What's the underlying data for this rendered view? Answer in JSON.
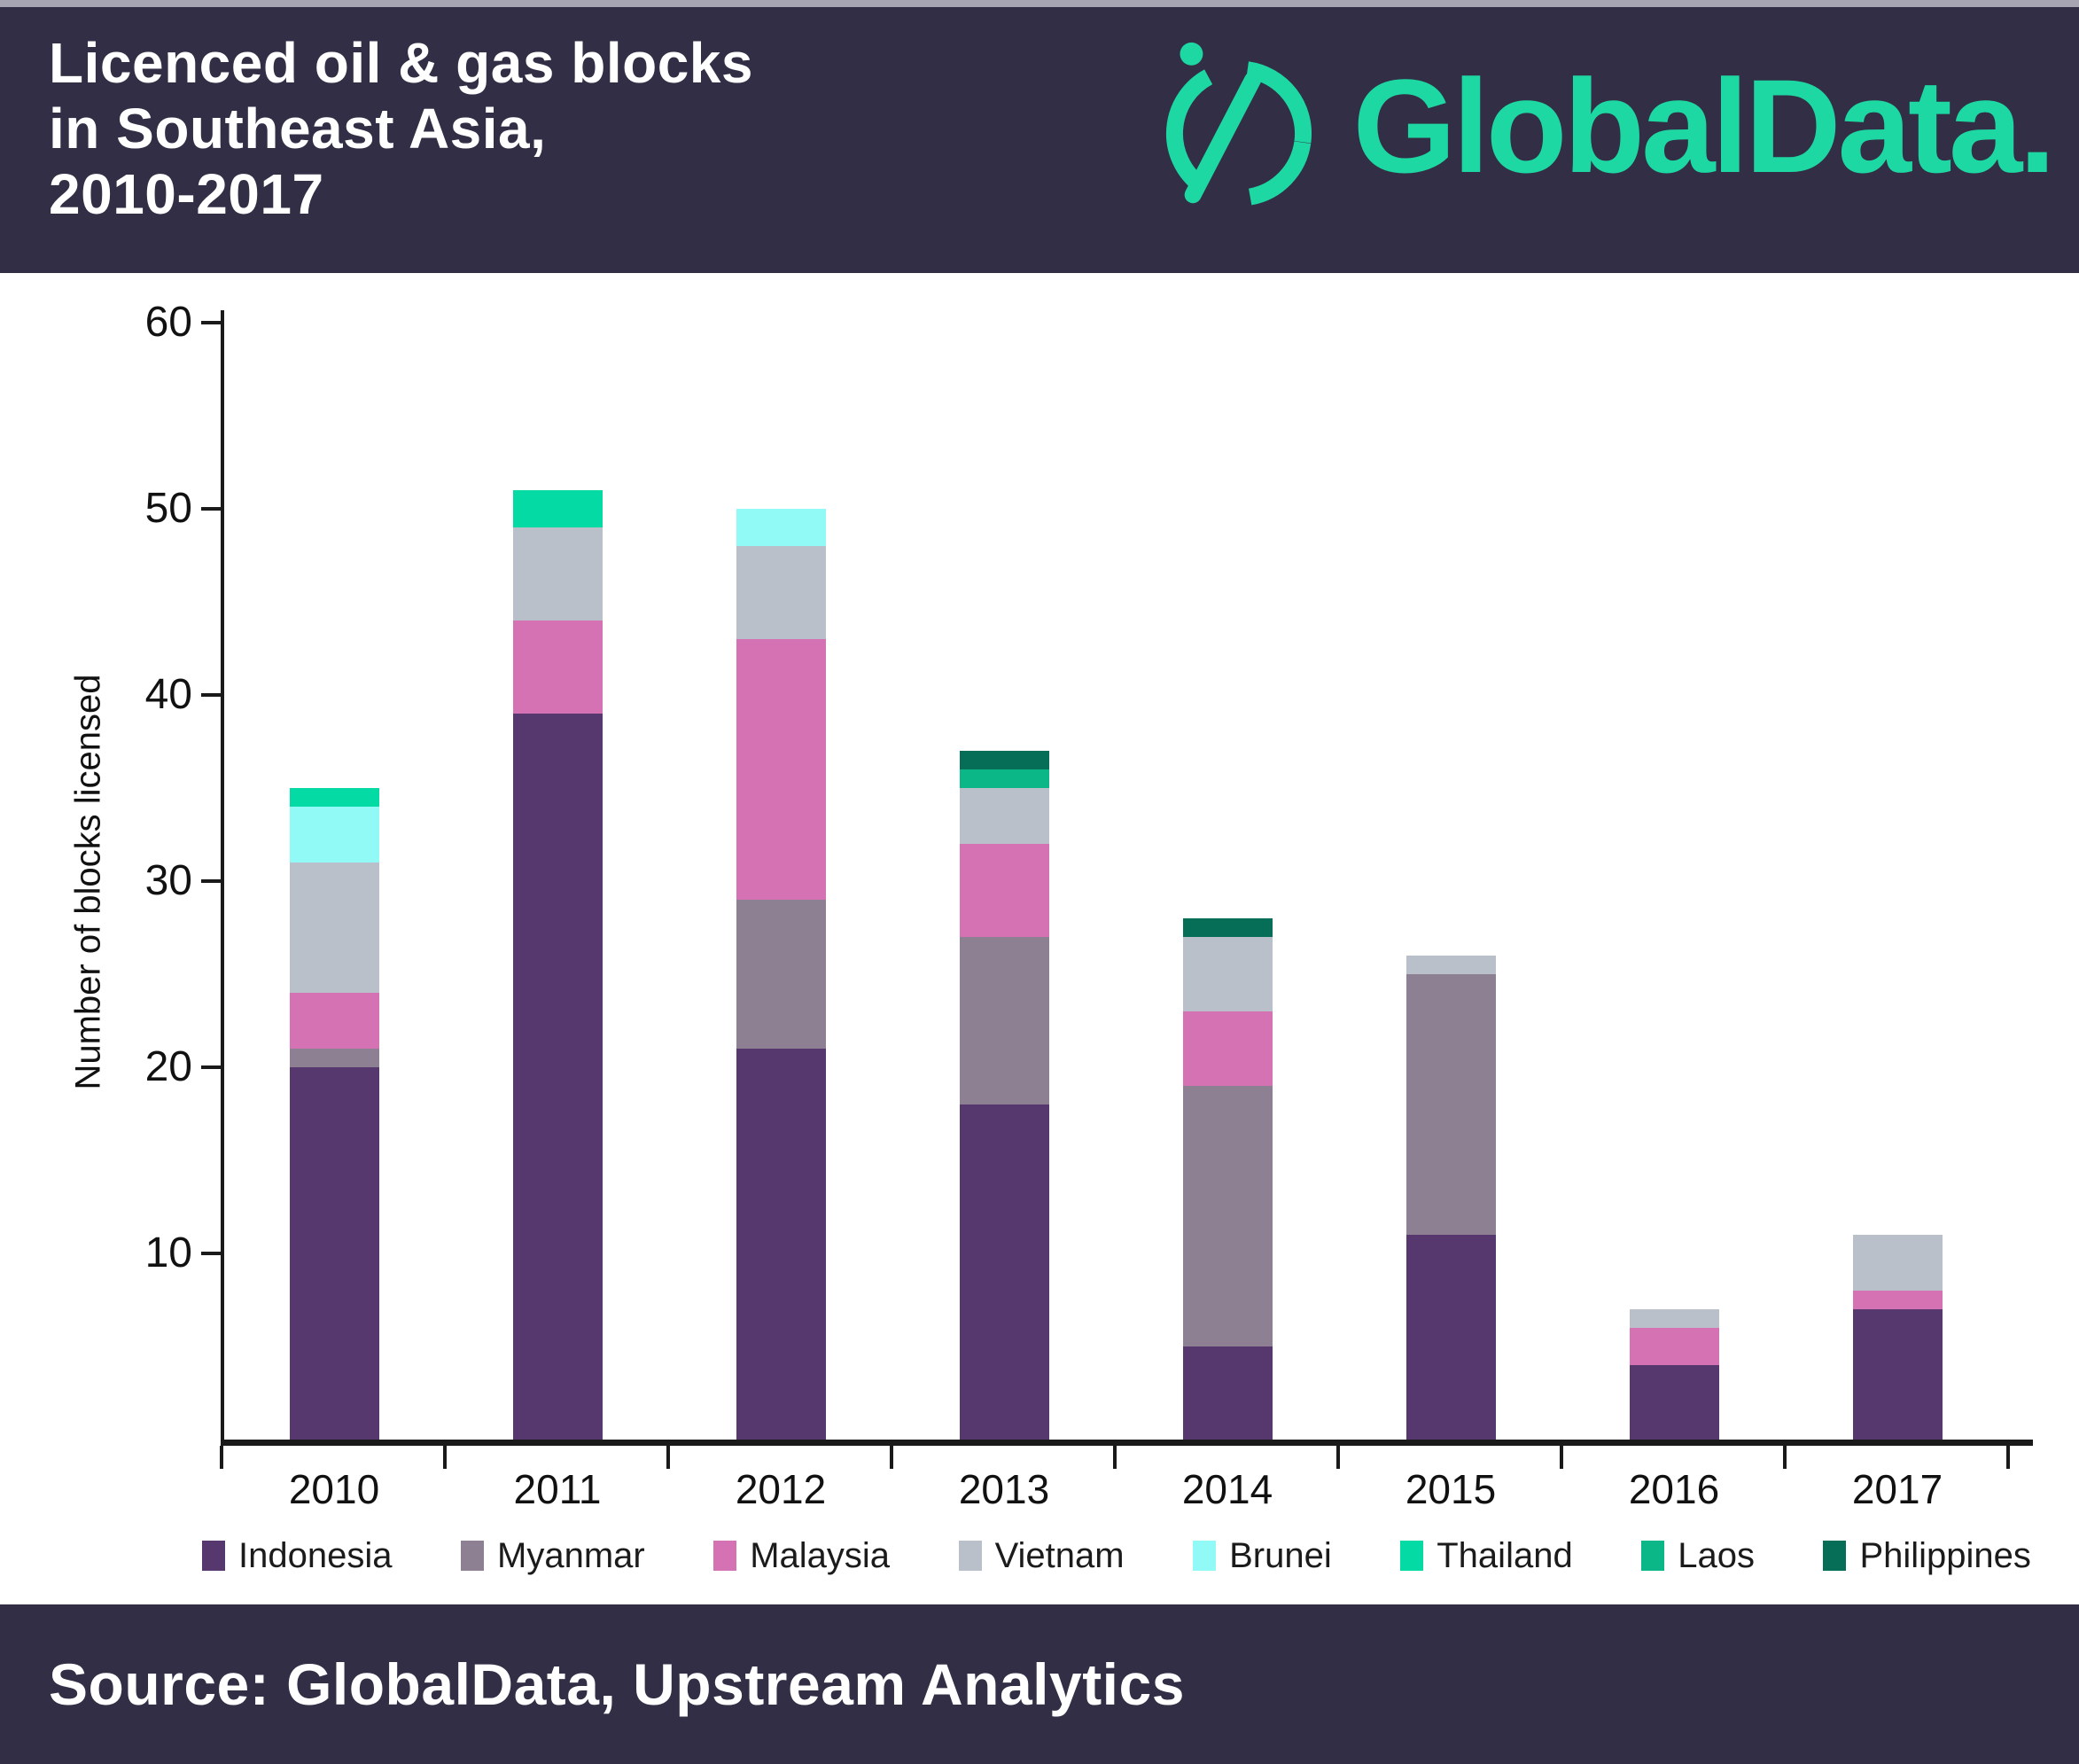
{
  "header": {
    "title_lines": [
      "Licenced oil & gas blocks",
      "in Southeast Asia,",
      "2010-2017"
    ],
    "logo_text": "GlobalData."
  },
  "footer": {
    "source": "Source: GlobalData, Upstream Analytics"
  },
  "colors": {
    "band_background": "#322e45",
    "logo_green": "#1dd8a2",
    "axis": "#1a1a1a",
    "plot_background": "#ffffff"
  },
  "chart_data": {
    "type": "bar",
    "stacked": true,
    "title": "Licenced oil & gas blocks in Southeast Asia, 2010-2017",
    "xlabel": "",
    "ylabel": "Number of blocks licensed",
    "ylim": [
      0,
      60
    ],
    "yticks": [
      10,
      20,
      30,
      40,
      50,
      60
    ],
    "grid": false,
    "legend_position": "bottom",
    "categories": [
      "2010",
      "2011",
      "2012",
      "2013",
      "2014",
      "2015",
      "2016",
      "2017"
    ],
    "series": [
      {
        "name": "Indonesia",
        "color": "#56386f",
        "values": [
          20,
          39,
          21,
          18,
          5,
          11,
          4,
          7
        ]
      },
      {
        "name": "Myanmar",
        "color": "#8d8092",
        "values": [
          1,
          0,
          8,
          9,
          14,
          14,
          0,
          0
        ]
      },
      {
        "name": "Malaysia",
        "color": "#d572b4",
        "values": [
          3,
          5,
          14,
          5,
          4,
          0,
          2,
          1
        ]
      },
      {
        "name": "Vietnam",
        "color": "#b9c0c9",
        "values": [
          7,
          5,
          5,
          3,
          4,
          1,
          1,
          3
        ]
      },
      {
        "name": "Brunei",
        "color": "#92faf6",
        "values": [
          3,
          0,
          2,
          0,
          0,
          0,
          0,
          0
        ]
      },
      {
        "name": "Thailand",
        "color": "#04dba4",
        "values": [
          1,
          2,
          0,
          0,
          0,
          0,
          0,
          0
        ]
      },
      {
        "name": "Laos",
        "color": "#0cb787",
        "values": [
          0,
          0,
          0,
          1,
          0,
          0,
          0,
          0
        ]
      },
      {
        "name": "Philippines",
        "color": "#066e56",
        "values": [
          0,
          0,
          0,
          1,
          1,
          0,
          0,
          0
        ]
      }
    ],
    "totals": [
      35,
      51,
      50,
      37,
      28,
      26,
      7,
      11
    ]
  }
}
